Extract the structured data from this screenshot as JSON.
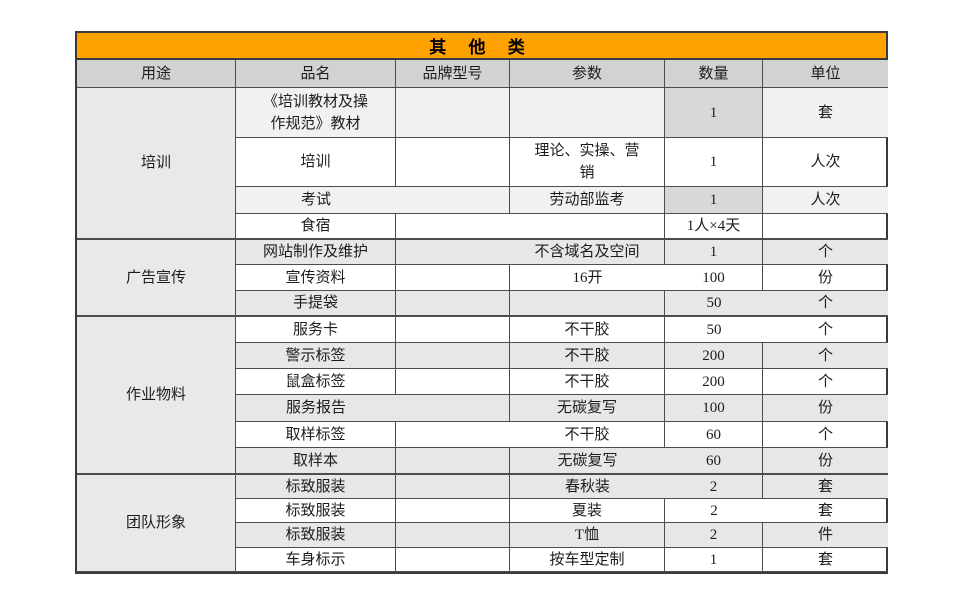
{
  "colors": {
    "title_bg": "#FFA200",
    "header_bg": "#D2D2D2",
    "band": "#E7E7E7",
    "light": "#F1F1F1",
    "qty_dark": "#D8D8D8",
    "usage_bg": "#E9E9E9"
  },
  "table": {
    "title": "其 他 类",
    "columns": [
      "用途",
      "品名",
      "品牌型号",
      "参数",
      "数量",
      "单位"
    ],
    "groups": [
      {
        "usage": "培训",
        "rows": [
          {
            "name": "《培训教材及操\n作规范》教材",
            "brand": "",
            "param": "",
            "qty": "1",
            "unit": "套",
            "shade": "light",
            "qty_shade": "dark"
          },
          {
            "name": "培训",
            "brand": "",
            "param": "理论、实操、营\n销",
            "qty": "1",
            "unit": "人次",
            "shade": "white",
            "qty_shade": ""
          },
          {
            "name": "考试",
            "brand": "",
            "param": "劳动部监考",
            "qty": "1",
            "unit": "人次",
            "shade": "light",
            "qty_shade": "dark"
          },
          {
            "name": "食宿",
            "brand": "",
            "param": "",
            "qty": "1人×4天",
            "unit": "",
            "shade": "white",
            "qty_shade": ""
          }
        ]
      },
      {
        "usage": "广告宣传",
        "rows": [
          {
            "name": "网站制作及维护",
            "brand": "",
            "param": "不含域名及空间",
            "qty": "1",
            "unit": "个",
            "shade": "band",
            "qty_shade": ""
          },
          {
            "name": "宣传资料",
            "brand": "",
            "param": "16开",
            "qty": "100",
            "unit": "份",
            "shade": "white",
            "qty_shade": ""
          },
          {
            "name": "手提袋",
            "brand": "",
            "param": "",
            "qty": "50",
            "unit": "个",
            "shade": "band",
            "qty_shade": ""
          }
        ]
      },
      {
        "usage": "作业物料",
        "rows": [
          {
            "name": "服务卡",
            "brand": "",
            "param": "不干胶",
            "qty": "50",
            "unit": "个",
            "shade": "white",
            "qty_shade": ""
          },
          {
            "name": "警示标签",
            "brand": "",
            "param": "不干胶",
            "qty": "200",
            "unit": "个",
            "shade": "band",
            "qty_shade": ""
          },
          {
            "name": "鼠盒标签",
            "brand": "",
            "param": "不干胶",
            "qty": "200",
            "unit": "个",
            "shade": "white",
            "qty_shade": ""
          },
          {
            "name": "服务报告",
            "brand": "",
            "param": "无碳复写",
            "qty": "100",
            "unit": "份",
            "shade": "band",
            "qty_shade": ""
          },
          {
            "name": "取样标签",
            "brand": "",
            "param": "不干胶",
            "qty": "60",
            "unit": "个",
            "shade": "white",
            "qty_shade": ""
          },
          {
            "name": "取样本",
            "brand": "",
            "param": "无碳复写",
            "qty": "60",
            "unit": "份",
            "shade": "band",
            "qty_shade": ""
          }
        ]
      },
      {
        "usage": "团队形象",
        "rows": [
          {
            "name": "标致服装",
            "brand": "",
            "param": "春秋装",
            "qty": "2",
            "unit": "套",
            "shade": "band",
            "qty_shade": ""
          },
          {
            "name": "标致服装",
            "brand": "",
            "param": "夏装",
            "qty": "2",
            "unit": "套",
            "shade": "white",
            "qty_shade": ""
          },
          {
            "name": "标致服装",
            "brand": "",
            "param": "T恤",
            "qty": "2",
            "unit": "件",
            "shade": "band",
            "qty_shade": ""
          },
          {
            "name": "车身标示",
            "brand": "",
            "param": "按车型定制",
            "qty": "1",
            "unit": "套",
            "shade": "white",
            "qty_shade": ""
          }
        ]
      }
    ]
  }
}
